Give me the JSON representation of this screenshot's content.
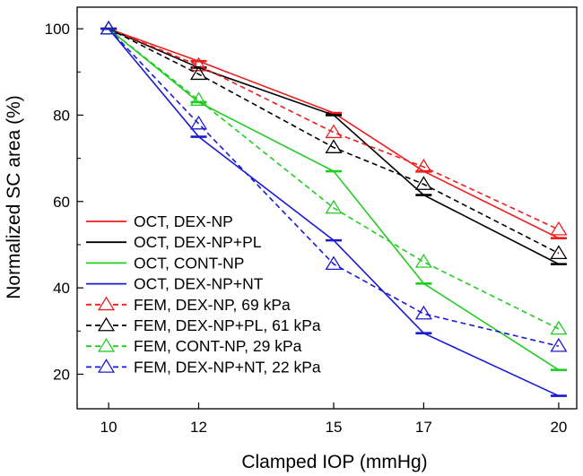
{
  "chart_data": {
    "type": "line",
    "title": "",
    "xlabel": "Clamped IOP (mmHg)",
    "ylabel": "Normalized SC area (%)",
    "x": [
      10,
      12,
      15,
      17,
      20
    ],
    "x_ticks": [
      "10",
      "12",
      "15",
      "17",
      "20"
    ],
    "y_ticks": [
      "20",
      "40",
      "60",
      "80",
      "100"
    ],
    "xlim": [
      9.3,
      20.4
    ],
    "ylim": [
      12,
      105
    ],
    "grid": false,
    "legend_position": "bottom-left",
    "series": [
      {
        "name": "OCT, DEX-NP",
        "style": "solid",
        "marker": "dash",
        "color": "#ee1c1c",
        "values": [
          100,
          92.5,
          80.5,
          67,
          51.5
        ]
      },
      {
        "name": "OCT, DEX-NP+PL",
        "style": "solid",
        "marker": "dash",
        "color": "#000000",
        "values": [
          100,
          91,
          80,
          61.5,
          45.5
        ]
      },
      {
        "name": "OCT, CONT-NP",
        "style": "solid",
        "marker": "dash",
        "color": "#22cc22",
        "values": [
          100,
          83,
          67,
          41,
          21
        ]
      },
      {
        "name": "OCT, DEX-NP+NT",
        "style": "solid",
        "marker": "dash",
        "color": "#1a1ad4",
        "values": [
          100,
          75,
          51,
          29.5,
          15
        ]
      },
      {
        "name": "FEM, DEX-NP, 69 kPa",
        "style": "dashed",
        "marker": "triangle",
        "color": "#ee1c1c",
        "values": [
          100,
          91.5,
          76,
          68,
          53.5
        ]
      },
      {
        "name": "FEM, DEX-NP+PL, 61 kPa",
        "style": "dashed",
        "marker": "triangle",
        "color": "#000000",
        "values": [
          100,
          89.5,
          72.5,
          64,
          48
        ]
      },
      {
        "name": "FEM, CONT-NP, 29 kPa",
        "style": "dashed",
        "marker": "triangle",
        "color": "#22cc22",
        "values": [
          100,
          83.5,
          58.5,
          46,
          30.5
        ]
      },
      {
        "name": "FEM, DEX-NP+NT, 22 kPa",
        "style": "dashed",
        "marker": "triangle",
        "color": "#1a1ad4",
        "values": [
          100,
          78,
          45.5,
          34,
          26.5
        ]
      }
    ]
  }
}
